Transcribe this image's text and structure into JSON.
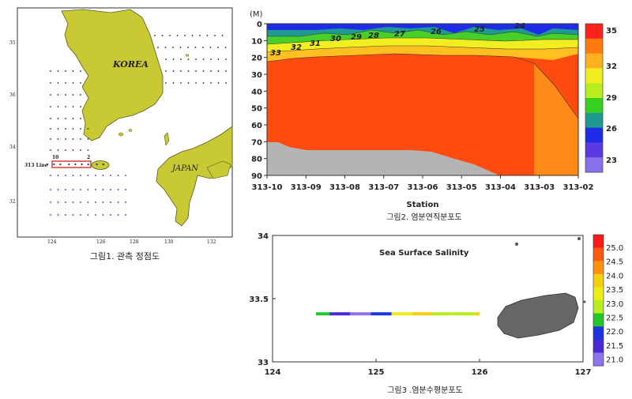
{
  "figure1": {
    "caption": "그림1. 관측 정점도",
    "korea_label": "KOREA",
    "japan_label": "JAPAN",
    "line_label": "313 Line",
    "line_start": "10",
    "line_end": "2",
    "lon_ticks": [
      "124",
      "126",
      "128",
      "130",
      "132"
    ],
    "lat_ticks": [
      "35",
      "36",
      "34",
      "32"
    ]
  },
  "figure2": {
    "caption": "그림2. 염분연직분포도",
    "y_unit_label": "(M)",
    "x_axis_title": "Station",
    "y_ticks": [
      "0",
      "10",
      "20",
      "30",
      "40",
      "50",
      "60",
      "70",
      "80",
      "90"
    ],
    "x_ticks": [
      "313-10",
      "313-09",
      "313-08",
      "313-07",
      "313-06",
      "313-05",
      "313-04",
      "313-03",
      "313-02"
    ],
    "contour_labels": [
      "33",
      "32",
      "31",
      "30",
      "29",
      "28",
      "27",
      "26",
      "25",
      "24"
    ],
    "colorbar": {
      "labels": [
        "35",
        "32",
        "29",
        "26",
        "23"
      ],
      "colors": [
        "#ff2020",
        "#ff7a10",
        "#ffb020",
        "#f3ee20",
        "#b8ee20",
        "#38d020",
        "#1e9a90",
        "#1e2ce8",
        "#5a3ae0",
        "#8a72ee"
      ]
    }
  },
  "figure3": {
    "caption": "그림3 .염분수평분포도",
    "title": "Sea Surface Salinity",
    "x_ticks": [
      "124",
      "125",
      "126",
      "127"
    ],
    "y_ticks": [
      "34",
      "33.5",
      "33"
    ],
    "colorbar": {
      "labels": [
        "25.0",
        "24.5",
        "24.0",
        "23.5",
        "23.0",
        "22.5",
        "22.0",
        "21.5",
        "21.0"
      ],
      "colors": [
        "#ff1a1a",
        "#ff5a12",
        "#ff9010",
        "#f4d010",
        "#ecec16",
        "#b8ee20",
        "#22c82a",
        "#1e34e0",
        "#4a2ad6",
        "#8e72ee"
      ]
    }
  },
  "chart_data": [
    {
      "type": "scatter",
      "title": "",
      "xlabel": "",
      "ylabel": "",
      "xlim": [
        123,
        133
      ],
      "ylim": [
        31,
        35.7
      ],
      "series": [
        {
          "name": "313 Line",
          "x": [
            124.4,
            124.7,
            125.0,
            125.4,
            125.7,
            126.0,
            126.3,
            126.7,
            127.0
          ],
          "y": [
            33.4,
            33.4,
            33.4,
            33.4,
            33.4,
            33.4,
            33.4,
            33.4,
            33.4
          ]
        }
      ]
    },
    {
      "type": "heatmap",
      "title": "",
      "xlabel": "Station",
      "ylabel": "(M)",
      "ylim": [
        90,
        0
      ],
      "categories": [
        "313-10",
        "313-09",
        "313-08",
        "313-07",
        "313-06",
        "313-05",
        "313-04",
        "313-03",
        "313-02"
      ],
      "bottom_depth": [
        70,
        75,
        75,
        75,
        75,
        78,
        88,
        90,
        90
      ],
      "salinity_35_layer_top": [
        15,
        14,
        14,
        13,
        12,
        12,
        12,
        13,
        22
      ],
      "contour_values": [
        33,
        32,
        31,
        30,
        29,
        28,
        27,
        26,
        25,
        24
      ]
    },
    {
      "type": "line",
      "title": "Sea Surface Salinity",
      "xlabel": "",
      "ylabel": "",
      "xlim": [
        124,
        127
      ],
      "ylim": [
        33,
        34
      ],
      "series": [
        {
          "name": "313 Line",
          "x": [
            124.42,
            124.55,
            124.75,
            124.95,
            125.15,
            125.35,
            125.55,
            125.75,
            125.95
          ],
          "y": [
            33.38,
            33.38,
            33.38,
            33.38,
            33.38,
            33.38,
            33.38,
            33.38,
            33.38
          ],
          "salinity": [
            22.6,
            21.5,
            21.3,
            22.4,
            23.5,
            24.2,
            23.4,
            23.3,
            24.4
          ]
        }
      ]
    }
  ]
}
